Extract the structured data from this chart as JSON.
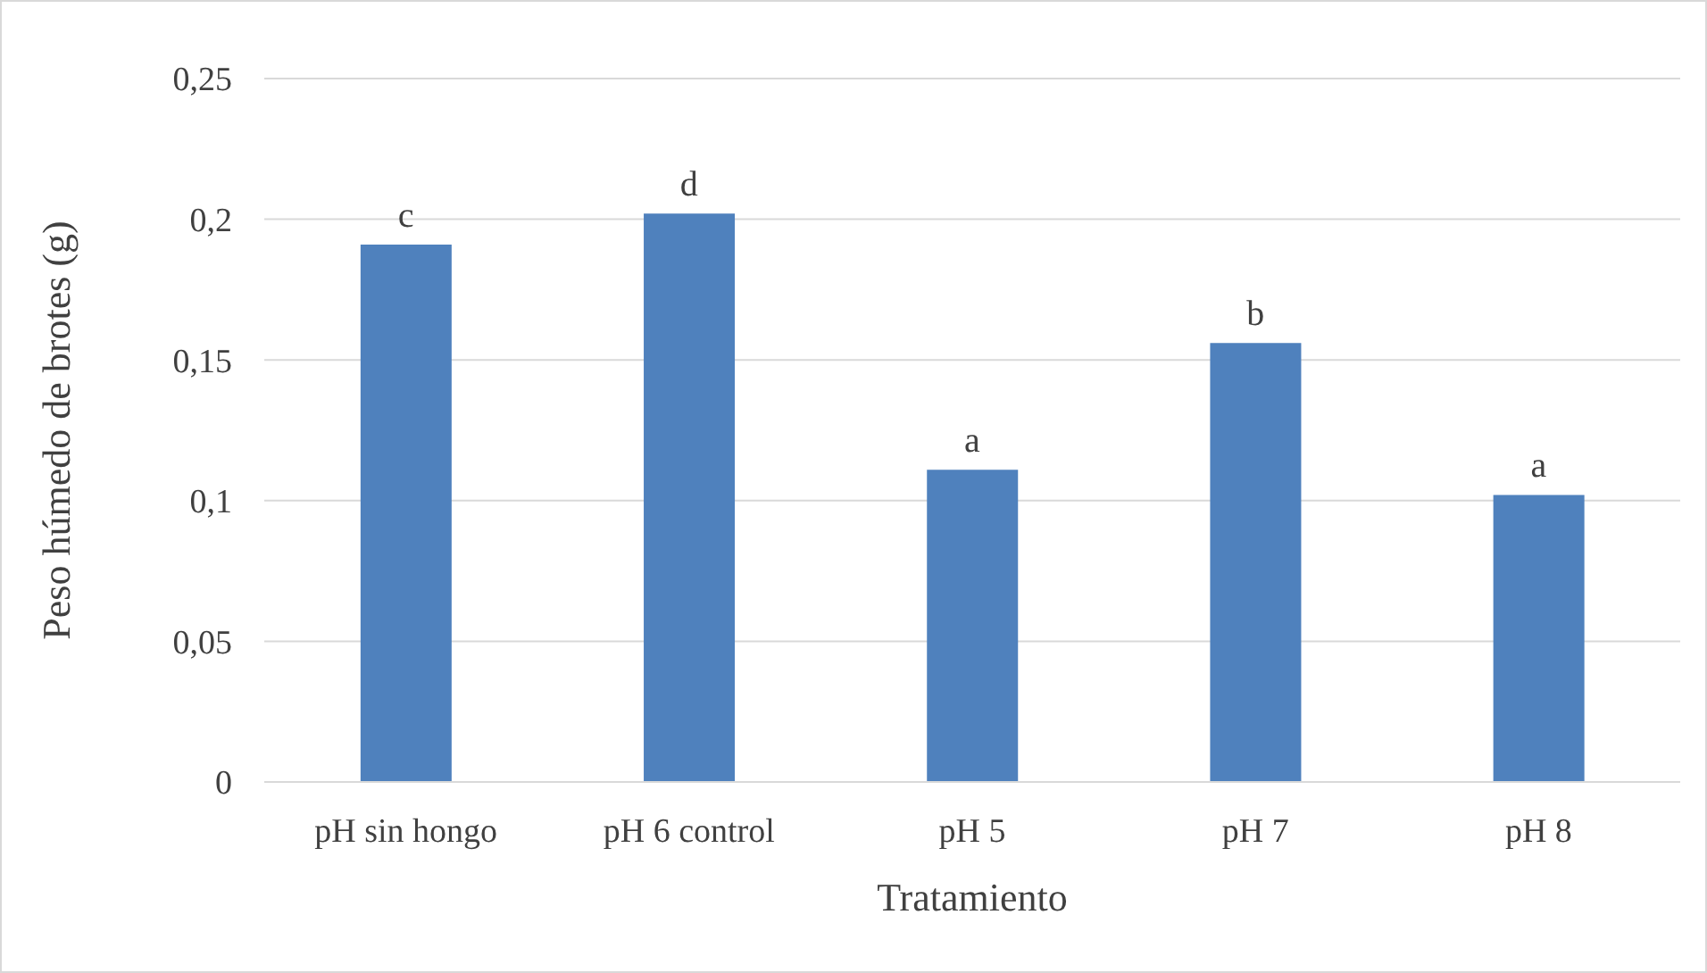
{
  "chart_data": {
    "type": "bar",
    "xlabel": "Tratamiento",
    "ylabel": "Peso húmedo de brotes (g)",
    "categories": [
      "pH sin hongo",
      "pH 6 control",
      "pH 5",
      "pH 7",
      "pH 8"
    ],
    "values": [
      0.191,
      0.202,
      0.111,
      0.156,
      0.102
    ],
    "color": "#4f81bd",
    "ylim": [
      0,
      0.25
    ],
    "yticks": [
      0,
      {
        "value": 0.05,
        "label": "0,05"
      },
      {
        "value": 0.1,
        "label": "0,1"
      },
      {
        "value": 0.15,
        "label": "0,15"
      },
      {
        "value": 0.2,
        "label": "0,2"
      },
      {
        "value": 0.25,
        "label": "0,25"
      }
    ],
    "grid": "y",
    "legend": false,
    "annotations": [
      {
        "text": "c",
        "x": "pH sin hongo",
        "y": 0.191
      },
      {
        "text": "d",
        "x": "pH 6 control",
        "y": 0.202
      },
      {
        "text": "a",
        "x": "pH 5",
        "y": 0.111
      },
      {
        "text": "b",
        "x": "pH 7",
        "y": 0.156
      },
      {
        "text": "a",
        "x": "pH 8",
        "y": 0.102
      }
    ]
  }
}
